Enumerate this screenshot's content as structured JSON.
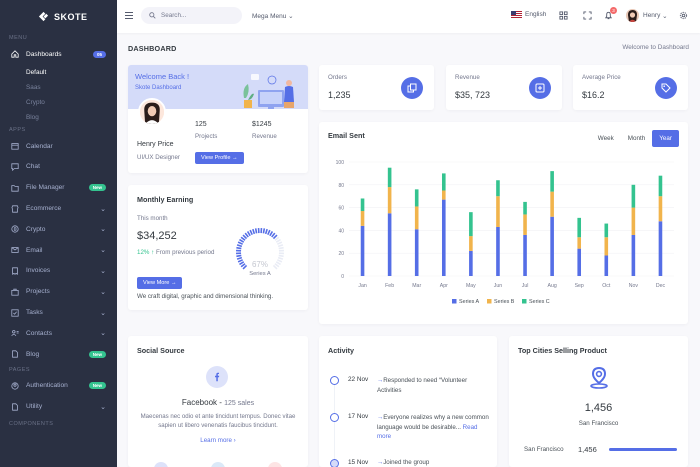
{
  "brand": {
    "name": "SKOTE"
  },
  "colors": {
    "sidebar": "#2a3042",
    "primary": "#556ee6",
    "success": "#34c38f",
    "warning": "#f1b44c",
    "danger": "#f46a6a"
  },
  "sidebar": {
    "sections": {
      "menu": "MENU",
      "apps": "APPS",
      "pages": "PAGES",
      "components": "COMPONENTS"
    },
    "dashboards": {
      "label": "Dashboards",
      "badge": "05"
    },
    "submenu": [
      "Default",
      "Saas",
      "Crypto",
      "Blog"
    ],
    "apps": [
      {
        "label": "Calendar",
        "icon": "calendar-icon"
      },
      {
        "label": "Chat",
        "icon": "chat-icon"
      },
      {
        "label": "File Manager",
        "icon": "folder-icon",
        "badge": "New"
      },
      {
        "label": "Ecommerce",
        "icon": "store-icon"
      },
      {
        "label": "Crypto",
        "icon": "bitcoin-icon"
      },
      {
        "label": "Email",
        "icon": "envelope-icon"
      },
      {
        "label": "Invoices",
        "icon": "receipt-icon"
      },
      {
        "label": "Projects",
        "icon": "briefcase-icon"
      },
      {
        "label": "Tasks",
        "icon": "task-icon"
      },
      {
        "label": "Contacts",
        "icon": "contacts-icon"
      },
      {
        "label": "Blog",
        "icon": "file-icon",
        "badge": "New"
      }
    ],
    "pages": [
      {
        "label": "Authentication",
        "icon": "user-circle-icon",
        "badge": "New"
      },
      {
        "label": "Utility",
        "icon": "file-icon"
      }
    ]
  },
  "topbar": {
    "search_placeholder": "Search...",
    "mega_menu": "Mega Menu",
    "language": "English",
    "notifications": "3",
    "user": "Henry"
  },
  "page": {
    "title": "DASHBOARD",
    "breadcrumb": "Welcome to Dashboard"
  },
  "welcome": {
    "title": "Welcome Back !",
    "subtitle": "Skote Dashboard",
    "name": "Henry Price",
    "role": "UI/UX Designer",
    "projects_value": "125",
    "projects_label": "Projects",
    "revenue_value": "$1245",
    "revenue_label": "Revenue",
    "button": "View Profile"
  },
  "earning": {
    "title": "Monthly Earning",
    "period": "This month",
    "amount": "$34,252",
    "change": "12%",
    "change_text": "From previous period",
    "gauge_value": "67%",
    "gauge_fraction": 0.67,
    "gauge_label": "Series A",
    "button": "View More",
    "footer": "We craft digital, graphic and dimensional thinking."
  },
  "stats": [
    {
      "label": "Orders",
      "value": "1,235",
      "icon": "copy-icon"
    },
    {
      "label": "Revenue",
      "value": "$35, 723",
      "icon": "archive-icon"
    },
    {
      "label": "Average Price",
      "value": "$16.2",
      "icon": "tag-icon"
    }
  ],
  "email_sent": {
    "title": "Email Sent",
    "tabs": [
      "Week",
      "Month",
      "Year"
    ],
    "active_tab": "Year"
  },
  "chart_data": {
    "type": "bar",
    "stacked": true,
    "categories": [
      "Jan",
      "Feb",
      "Mar",
      "Apr",
      "May",
      "Jun",
      "Jul",
      "Aug",
      "Sep",
      "Oct",
      "Nov",
      "Dec"
    ],
    "series": [
      {
        "name": "Series A",
        "color": "#556ee6",
        "values": [
          44,
          55,
          41,
          67,
          22,
          43,
          36,
          52,
          24,
          18,
          36,
          48
        ]
      },
      {
        "name": "Series B",
        "color": "#f1b44c",
        "values": [
          13,
          23,
          20,
          8,
          13,
          27,
          18,
          22,
          10,
          16,
          24,
          22
        ]
      },
      {
        "name": "Series C",
        "color": "#34c38f",
        "values": [
          11,
          17,
          15,
          15,
          21,
          14,
          11,
          18,
          17,
          12,
          20,
          18
        ]
      }
    ],
    "ylim": [
      0,
      100
    ],
    "yticks": [
      0,
      20,
      40,
      60,
      80,
      100
    ],
    "legend": "bottom"
  },
  "social": {
    "title": "Social Source",
    "network": "Facebook",
    "sales": "125 sales",
    "text": "Maecenas nec odio et ante tincidunt tempus. Donec vitae sapien ut libero venenatis faucibus tincidunt.",
    "link": "Learn more"
  },
  "activity": {
    "title": "Activity",
    "items": [
      {
        "date": "22 Nov",
        "text": "Responded to need “Volunteer Activities"
      },
      {
        "date": "17 Nov",
        "text": "Everyone realizes why a new common language would be desirable...",
        "link": "Read more"
      },
      {
        "date": "15 Nov",
        "text": "Joined the group"
      }
    ]
  },
  "cities": {
    "title": "Top Cities Selling Product",
    "value": "1,456",
    "city": "San Francisco",
    "rows": [
      {
        "name": "San Francisco",
        "value": "1,456"
      }
    ]
  }
}
